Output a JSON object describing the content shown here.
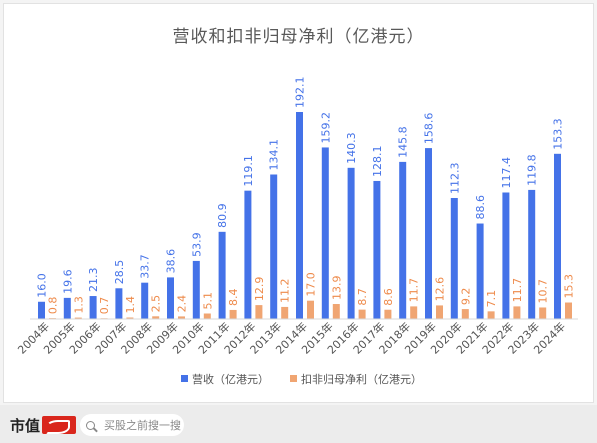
{
  "chart_data": {
    "type": "bar",
    "title": "营收和扣非归母净利（亿港元）",
    "categories": [
      "2004年",
      "2005年",
      "2006年",
      "2007年",
      "2008年",
      "2009年",
      "2010年",
      "2011年",
      "2012年",
      "2013年",
      "2014年",
      "2015年",
      "2016年",
      "2017年",
      "2018年",
      "2019年",
      "2020年",
      "2021年",
      "2022年",
      "2023年",
      "2024年"
    ],
    "series": [
      {
        "name": "营收（亿港元）",
        "color": "#4472e8",
        "values": [
          16.0,
          19.6,
          21.3,
          28.5,
          33.7,
          38.6,
          53.9,
          80.9,
          119.1,
          134.1,
          192.1,
          159.2,
          140.3,
          128.1,
          145.8,
          158.6,
          112.3,
          88.6,
          117.4,
          119.8,
          153.3
        ],
        "labels": [
          "16.0",
          "19.6",
          "21.3",
          "28.5",
          "33.7",
          "38.6",
          "53.9",
          "80.9",
          "119.1",
          "134.1",
          "192.1",
          "159.2",
          "140.3",
          "128.1",
          "145.8",
          "158.6",
          "112.3",
          "88.6",
          "117.4",
          "119.8",
          "153.3"
        ]
      },
      {
        "name": "扣非归母净利（亿港元）",
        "color": "#f0a572",
        "values": [
          0.8,
          1.3,
          0.7,
          1.4,
          2.5,
          2.4,
          5.1,
          8.4,
          12.9,
          11.2,
          17.0,
          13.9,
          8.7,
          8.6,
          11.7,
          12.6,
          9.2,
          7.1,
          11.7,
          10.7,
          15.3
        ],
        "labels": [
          "0.8",
          "1.3",
          "0.7",
          "1.4",
          "2.5",
          "2.4",
          "5.1",
          "8.4",
          "12.9",
          "11.2",
          "17.0",
          "13.9",
          "8.7",
          "8.6",
          "11.7",
          "12.6",
          "9.2",
          "7.1",
          "11.7",
          "10.7",
          "15.3"
        ]
      }
    ],
    "ylim": [
      0,
      200
    ],
    "grid": false,
    "legend": "bottom"
  },
  "footer": {
    "brand": "市值",
    "search_placeholder": "买股之前搜一搜",
    "brand_color": "#d9261c"
  }
}
